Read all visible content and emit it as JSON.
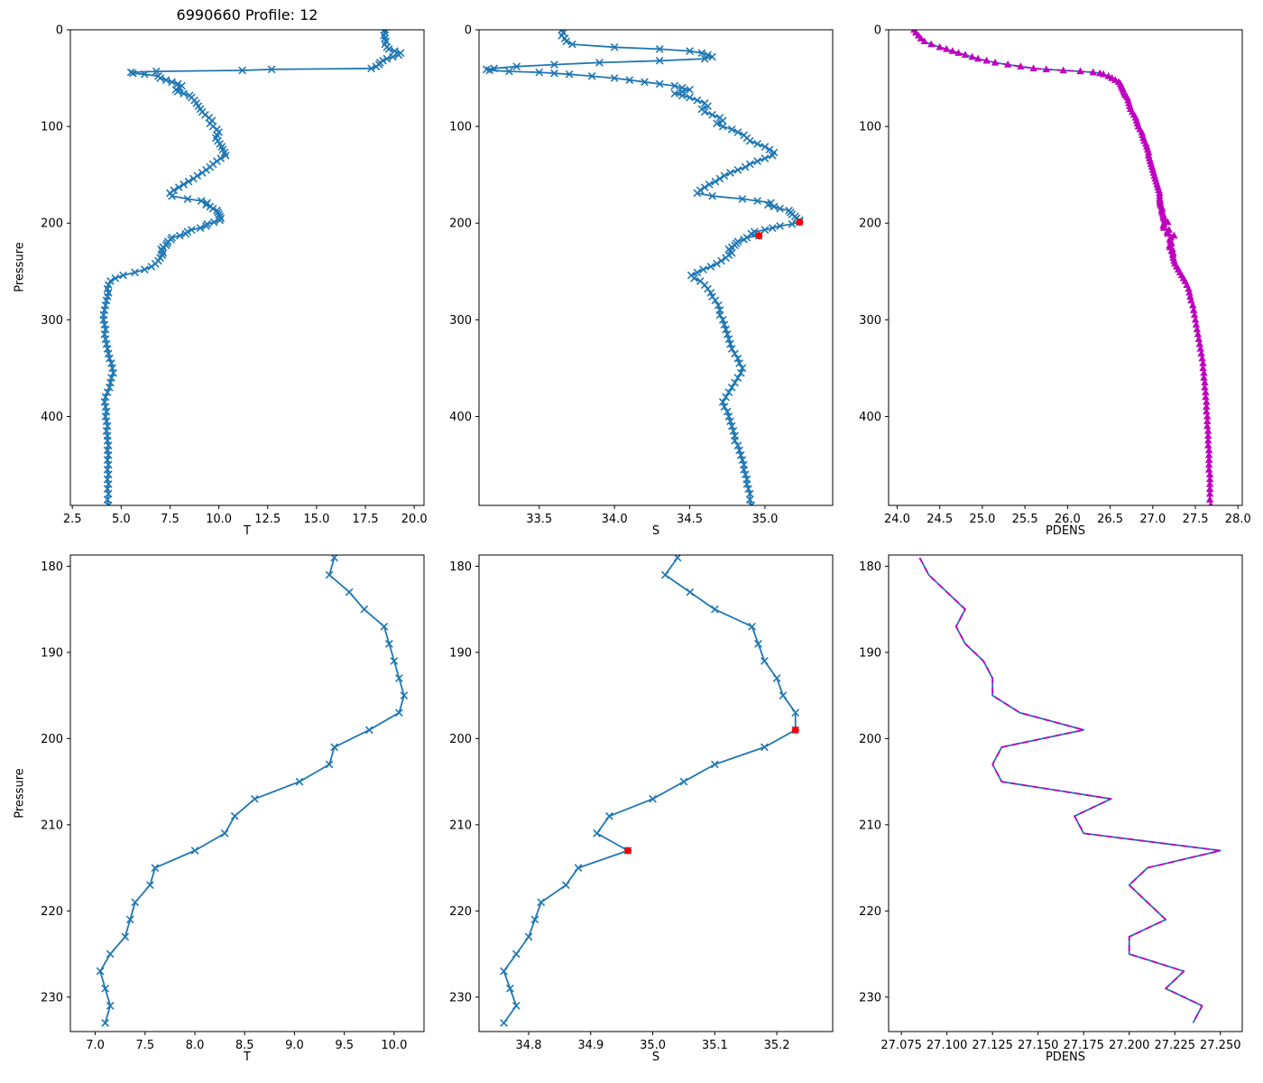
{
  "figure": {
    "title": "6990660 Profile: 12"
  },
  "colors": {
    "profile_blue": "#1f77b4",
    "density_magenta": "#bf00bf",
    "flag_red": "#ff0000"
  },
  "pressure_grids": {
    "full": [
      0,
      3,
      6,
      9,
      12,
      15,
      18,
      20,
      22,
      24,
      26,
      28,
      30,
      32,
      34,
      36,
      38,
      40,
      41,
      42,
      43,
      44,
      45,
      46,
      48,
      50,
      52,
      54,
      56,
      58,
      60,
      62,
      64,
      66,
      68,
      70,
      73,
      76,
      79,
      82,
      85,
      88,
      91,
      94,
      97,
      100,
      103,
      106,
      109,
      112,
      115,
      118,
      121,
      124,
      127,
      130,
      133,
      136,
      139,
      142,
      145,
      148,
      151,
      154,
      157,
      160,
      163,
      166,
      169,
      172,
      175,
      177,
      179,
      181,
      183,
      185,
      187,
      189,
      191,
      193,
      195,
      197,
      199,
      201,
      203,
      205,
      207,
      209,
      211,
      213,
      215,
      217,
      219,
      221,
      223,
      225,
      227,
      229,
      231,
      233,
      236,
      239,
      242,
      245,
      248,
      251,
      254,
      257,
      260,
      264,
      268,
      272,
      276,
      280,
      285,
      290,
      295,
      300,
      305,
      310,
      315,
      320,
      325,
      330,
      335,
      340,
      345,
      350,
      355,
      360,
      365,
      370,
      375,
      380,
      385,
      390,
      395,
      400,
      405,
      410,
      415,
      420,
      425,
      430,
      435,
      440,
      445,
      450,
      455,
      460,
      465,
      470,
      475,
      480,
      486,
      492
    ],
    "zoom": [
      179,
      181,
      183,
      185,
      187,
      189,
      191,
      193,
      195,
      197,
      199,
      201,
      203,
      205,
      207,
      209,
      211,
      213,
      215,
      217,
      219,
      221,
      223,
      225,
      227,
      229,
      231,
      233
    ]
  },
  "chart_data": [
    {
      "type": "line",
      "title": "6990660 Profile: 12",
      "xlabel": "T",
      "ylabel": "Pressure",
      "pgrid": "full",
      "xlim": [
        2.4,
        20.5
      ],
      "ylim": [
        0,
        492
      ],
      "y_inverted": true,
      "xticks": [
        2.5,
        5.0,
        7.5,
        10.0,
        12.5,
        15.0,
        17.5,
        20.0
      ],
      "xdec": 1,
      "yticks": [
        0,
        100,
        200,
        300,
        400
      ],
      "series": [
        {
          "name": "temperature-profile",
          "values": [
            18.5,
            18.5,
            18.45,
            18.5,
            18.55,
            18.5,
            18.6,
            18.7,
            19.0,
            19.3,
            19.2,
            18.9,
            18.6,
            18.4,
            18.25,
            18.2,
            18.05,
            17.8,
            12.7,
            11.2,
            6.8,
            5.5,
            5.6,
            6.2,
            6.9,
            7.0,
            7.3,
            7.6,
            7.9,
            8.1,
            8.0,
            7.8,
            7.9,
            8.2,
            8.5,
            8.6,
            8.75,
            8.85,
            8.95,
            9.05,
            9.15,
            9.3,
            9.5,
            9.65,
            9.55,
            9.7,
            9.9,
            10.0,
            9.9,
            9.85,
            9.95,
            10.05,
            10.15,
            10.2,
            10.3,
            10.35,
            10.1,
            9.9,
            9.7,
            9.55,
            9.35,
            9.15,
            8.9,
            8.7,
            8.45,
            8.2,
            7.95,
            7.7,
            7.5,
            7.6,
            8.4,
            9.1,
            9.4,
            9.35,
            9.55,
            9.7,
            9.9,
            9.95,
            10.0,
            10.05,
            10.1,
            10.05,
            9.75,
            9.4,
            9.35,
            9.05,
            8.6,
            8.4,
            8.3,
            8.0,
            7.6,
            7.55,
            7.4,
            7.35,
            7.3,
            7.15,
            7.05,
            7.1,
            7.15,
            7.1,
            7.0,
            6.9,
            6.75,
            6.55,
            6.2,
            5.7,
            5.1,
            4.7,
            4.45,
            4.35,
            4.3,
            4.35,
            4.3,
            4.25,
            4.2,
            4.15,
            4.1,
            4.1,
            4.15,
            4.2,
            4.15,
            4.2,
            4.25,
            4.3,
            4.35,
            4.4,
            4.5,
            4.55,
            4.6,
            4.5,
            4.45,
            4.4,
            4.3,
            4.2,
            4.15,
            4.2,
            4.25,
            4.2,
            4.25,
            4.3,
            4.25,
            4.3,
            4.3,
            4.35,
            4.3,
            4.35,
            4.3,
            4.35,
            4.3,
            4.35,
            4.3,
            4.35,
            4.3,
            4.35,
            4.3,
            4.35
          ],
          "styles": [
            {
              "color": "#1f77b4",
              "line": "solid",
              "marker": "x"
            }
          ]
        }
      ]
    },
    {
      "type": "line",
      "xlabel": "S",
      "ylabel": "Pressure",
      "pgrid": "full",
      "xlim": [
        33.1,
        35.45
      ],
      "ylim": [
        0,
        492
      ],
      "y_inverted": true,
      "xticks": [
        33.5,
        34.0,
        34.5,
        35.0
      ],
      "xdec": 1,
      "yticks": [
        0,
        100,
        200,
        300,
        400
      ],
      "series": [
        {
          "name": "salinity-profile",
          "values": [
            33.65,
            33.66,
            33.65,
            33.67,
            33.68,
            33.72,
            34.0,
            34.3,
            34.5,
            34.58,
            34.62,
            34.65,
            34.6,
            34.3,
            33.9,
            33.6,
            33.35,
            33.2,
            33.15,
            33.17,
            33.3,
            33.5,
            33.6,
            33.7,
            33.85,
            34.0,
            34.1,
            34.2,
            34.3,
            34.4,
            34.45,
            34.5,
            34.45,
            34.4,
            34.45,
            34.5,
            34.55,
            34.6,
            34.62,
            34.58,
            34.6,
            34.65,
            34.7,
            34.72,
            34.68,
            34.72,
            34.78,
            34.82,
            34.86,
            34.88,
            34.9,
            34.95,
            35.0,
            35.03,
            35.06,
            35.05,
            35.0,
            34.95,
            34.9,
            34.87,
            34.82,
            34.77,
            34.73,
            34.7,
            34.67,
            34.63,
            34.6,
            34.57,
            34.55,
            34.65,
            34.85,
            34.95,
            35.04,
            35.02,
            35.06,
            35.1,
            35.16,
            35.17,
            35.18,
            35.2,
            35.21,
            35.23,
            35.23,
            35.18,
            35.1,
            35.05,
            35.0,
            34.93,
            34.91,
            34.96,
            34.88,
            34.86,
            34.82,
            34.81,
            34.8,
            34.78,
            34.76,
            34.77,
            34.78,
            34.76,
            34.74,
            34.71,
            34.68,
            34.64,
            34.59,
            34.55,
            34.51,
            34.53,
            34.57,
            34.6,
            34.62,
            34.64,
            34.65,
            34.67,
            34.69,
            34.7,
            34.7,
            34.72,
            34.73,
            34.74,
            34.75,
            34.76,
            34.77,
            34.78,
            34.8,
            34.82,
            34.83,
            34.85,
            34.84,
            34.82,
            34.8,
            34.78,
            34.76,
            34.74,
            34.72,
            34.73,
            34.75,
            34.76,
            34.77,
            34.78,
            34.79,
            34.8,
            34.8,
            34.82,
            34.83,
            34.84,
            34.85,
            34.86,
            34.86,
            34.87,
            34.88,
            34.88,
            34.89,
            34.9,
            34.9,
            34.91
          ],
          "styles": [
            {
              "color": "#1f77b4",
              "line": "solid",
              "marker": "x"
            }
          ]
        },
        {
          "name": "flagged-points",
          "points": [
            [
              35.23,
              199
            ],
            [
              34.96,
              213
            ]
          ],
          "styles": [
            {
              "color": "#ff0000",
              "marker": "dot"
            }
          ]
        }
      ]
    },
    {
      "type": "line",
      "xlabel": "PDENS",
      "ylabel": "Pressure",
      "pgrid": "full",
      "xlim": [
        23.9,
        28.05
      ],
      "ylim": [
        0,
        492
      ],
      "y_inverted": true,
      "xticks": [
        24.0,
        24.5,
        25.0,
        25.5,
        26.0,
        26.5,
        27.0,
        27.5,
        28.0
      ],
      "xdec": 1,
      "yticks": [
        0,
        100,
        200,
        300,
        400
      ],
      "series": [
        {
          "name": "pdens-profile",
          "values": [
            24.2,
            24.22,
            24.25,
            24.28,
            24.32,
            24.4,
            24.5,
            24.58,
            24.65,
            24.72,
            24.8,
            24.88,
            24.95,
            25.05,
            25.15,
            25.3,
            25.45,
            25.6,
            25.75,
            25.95,
            26.15,
            26.3,
            26.38,
            26.42,
            26.48,
            26.52,
            26.56,
            26.6,
            26.62,
            26.63,
            26.64,
            26.65,
            26.66,
            26.67,
            26.68,
            26.7,
            26.71,
            26.72,
            26.73,
            26.74,
            26.76,
            26.78,
            26.8,
            26.81,
            26.82,
            26.83,
            26.85,
            26.87,
            26.88,
            26.89,
            26.9,
            26.92,
            26.93,
            26.94,
            26.95,
            26.95,
            26.96,
            26.97,
            26.98,
            26.99,
            27.0,
            27.01,
            27.02,
            27.03,
            27.04,
            27.05,
            27.06,
            27.07,
            27.08,
            27.08,
            27.08,
            27.085,
            27.085,
            27.09,
            27.1,
            27.11,
            27.105,
            27.11,
            27.12,
            27.125,
            27.125,
            27.14,
            27.175,
            27.13,
            27.125,
            27.13,
            27.19,
            27.17,
            27.175,
            27.25,
            27.21,
            27.2,
            27.21,
            27.22,
            27.2,
            27.2,
            27.23,
            27.22,
            27.24,
            27.235,
            27.24,
            27.25,
            27.26,
            27.28,
            27.3,
            27.32,
            27.34,
            27.36,
            27.38,
            27.4,
            27.42,
            27.43,
            27.44,
            27.45,
            27.47,
            27.48,
            27.49,
            27.5,
            27.51,
            27.52,
            27.53,
            27.54,
            27.55,
            27.56,
            27.57,
            27.58,
            27.59,
            27.59,
            27.6,
            27.6,
            27.61,
            27.61,
            27.62,
            27.62,
            27.63,
            27.63,
            27.63,
            27.64,
            27.64,
            27.64,
            27.65,
            27.65,
            27.65,
            27.65,
            27.66,
            27.66,
            27.66,
            27.66,
            27.66,
            27.67,
            27.67,
            27.67,
            27.67,
            27.67,
            27.67,
            27.68
          ],
          "styles": [
            {
              "color": "#1f77b4",
              "line": "solid"
            },
            {
              "color": "#bf00bf",
              "line": "dash"
            },
            {
              "color": "#bf00bf",
              "marker": "triangle"
            }
          ]
        }
      ]
    },
    {
      "type": "line",
      "xlabel": "T",
      "ylabel": "Pressure",
      "pgrid": "zoom",
      "xlim": [
        6.75,
        10.3
      ],
      "ylim": [
        178.7,
        234.0
      ],
      "y_inverted": true,
      "xticks": [
        7.0,
        7.5,
        8.0,
        8.5,
        9.0,
        9.5,
        10.0
      ],
      "xdec": 1,
      "yticks": [
        180,
        190,
        200,
        210,
        220,
        230
      ],
      "series": [
        {
          "name": "temperature-zoom",
          "values": [
            9.4,
            9.35,
            9.55,
            9.7,
            9.9,
            9.95,
            10.0,
            10.05,
            10.1,
            10.05,
            9.75,
            9.4,
            9.35,
            9.05,
            8.6,
            8.4,
            8.3,
            8.0,
            7.6,
            7.55,
            7.4,
            7.35,
            7.3,
            7.15,
            7.05,
            7.1,
            7.15,
            7.1
          ],
          "styles": [
            {
              "color": "#1f77b4",
              "line": "solid",
              "marker": "x"
            }
          ]
        }
      ]
    },
    {
      "type": "line",
      "xlabel": "S",
      "ylabel": "Pressure",
      "pgrid": "zoom",
      "xlim": [
        34.72,
        35.29
      ],
      "ylim": [
        178.7,
        234.0
      ],
      "y_inverted": true,
      "xticks": [
        34.8,
        34.9,
        35.0,
        35.1,
        35.2
      ],
      "xdec": 1,
      "yticks": [
        180,
        190,
        200,
        210,
        220,
        230
      ],
      "series": [
        {
          "name": "salinity-zoom",
          "values": [
            35.04,
            35.02,
            35.06,
            35.1,
            35.16,
            35.17,
            35.18,
            35.2,
            35.21,
            35.23,
            35.23,
            35.18,
            35.1,
            35.05,
            35.0,
            34.93,
            34.91,
            34.96,
            34.88,
            34.86,
            34.82,
            34.81,
            34.8,
            34.78,
            34.76,
            34.77,
            34.78,
            34.76
          ],
          "styles": [
            {
              "color": "#1f77b4",
              "line": "solid",
              "marker": "x"
            }
          ]
        },
        {
          "name": "flagged-points",
          "points": [
            [
              35.23,
              199
            ],
            [
              34.96,
              213
            ]
          ],
          "styles": [
            {
              "color": "#ff0000",
              "marker": "dot"
            }
          ]
        }
      ]
    },
    {
      "type": "line",
      "xlabel": "PDENS",
      "ylabel": "Pressure",
      "pgrid": "zoom",
      "xlim": [
        27.068,
        27.262
      ],
      "ylim": [
        178.7,
        234.0
      ],
      "y_inverted": true,
      "xticks": [
        27.075,
        27.1,
        27.125,
        27.15,
        27.175,
        27.2,
        27.225,
        27.25
      ],
      "xdec": 3,
      "yticks": [
        180,
        190,
        200,
        210,
        220,
        230
      ],
      "series": [
        {
          "name": "pdens-zoom",
          "values": [
            27.085,
            27.09,
            27.1,
            27.11,
            27.105,
            27.11,
            27.12,
            27.125,
            27.125,
            27.14,
            27.175,
            27.13,
            27.125,
            27.13,
            27.19,
            27.17,
            27.175,
            27.25,
            27.21,
            27.2,
            27.21,
            27.22,
            27.2,
            27.2,
            27.23,
            27.22,
            27.24,
            27.235
          ],
          "styles": [
            {
              "color": "#1f77b4",
              "line": "solid"
            },
            {
              "color": "#bf00bf",
              "line": "dash"
            }
          ]
        }
      ]
    }
  ]
}
